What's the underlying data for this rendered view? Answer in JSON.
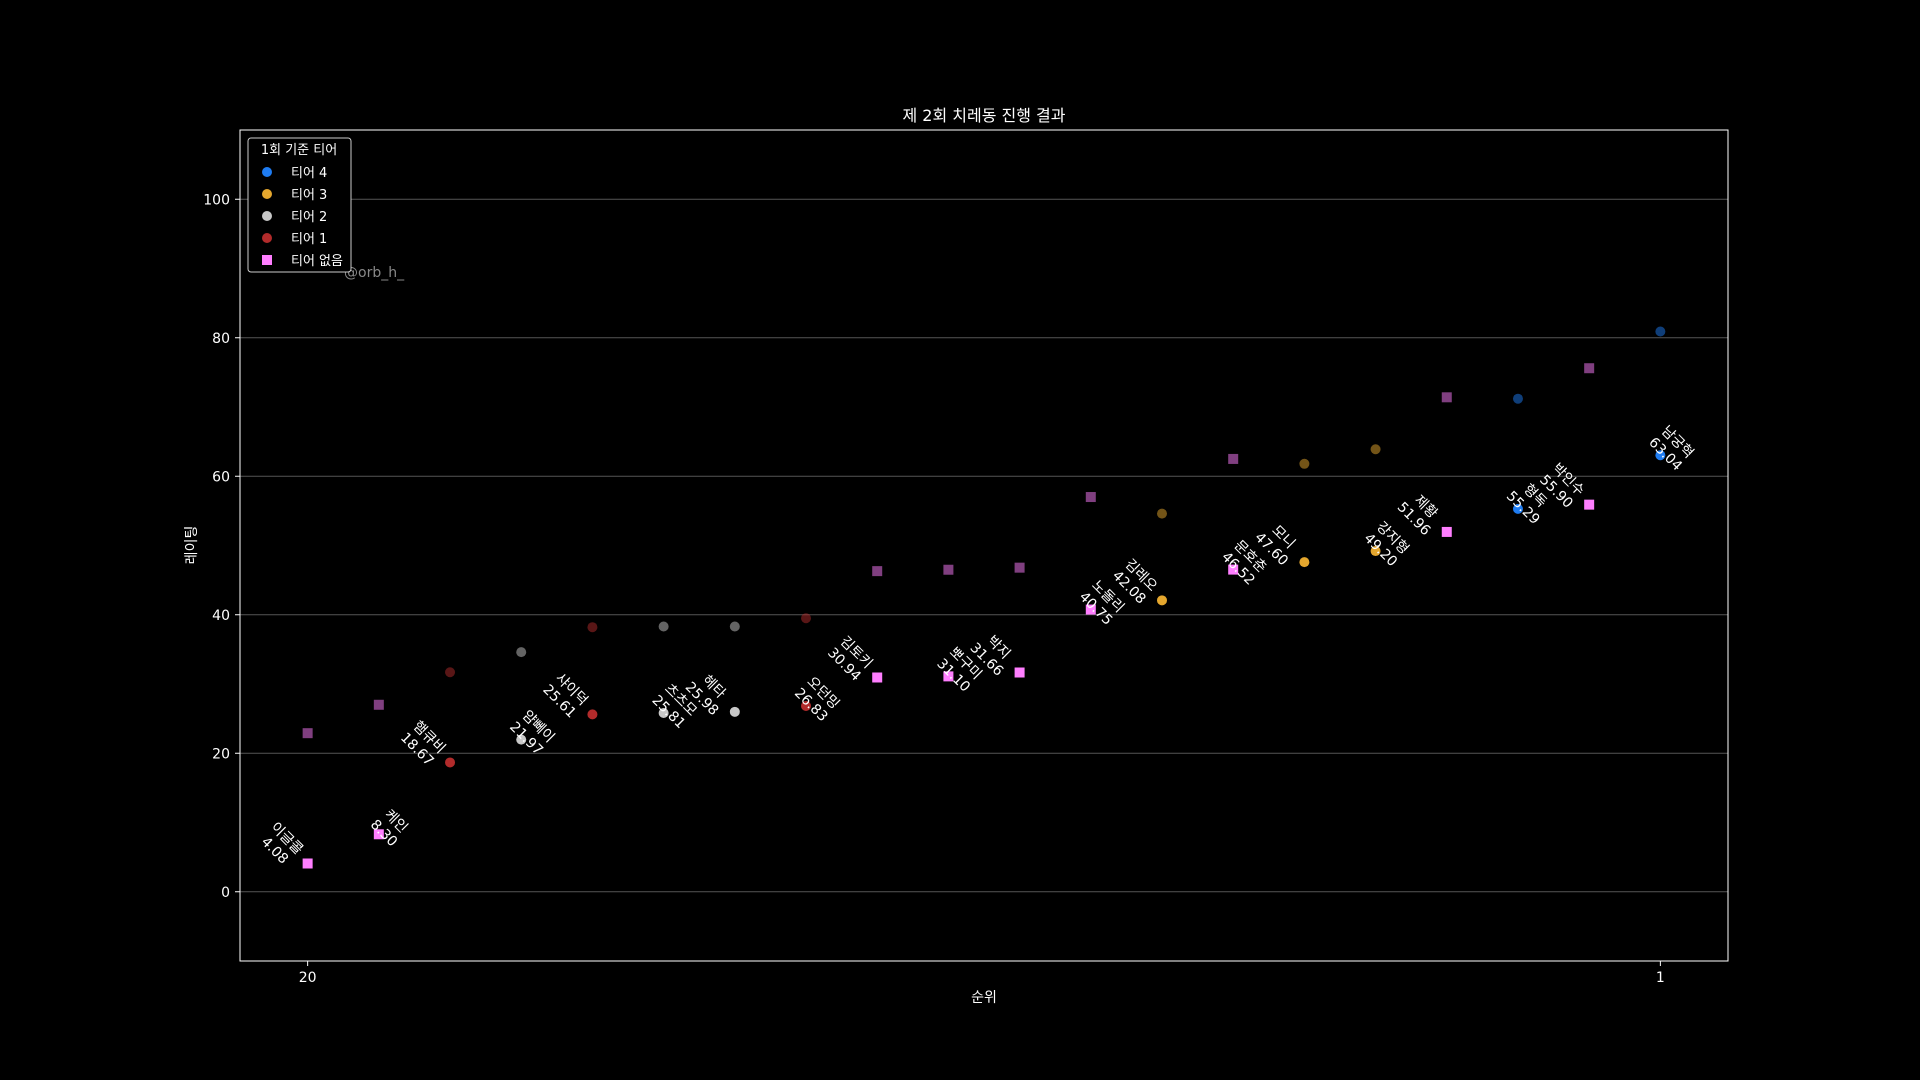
{
  "chart_data": {
    "type": "scatter",
    "title": "제 2회 치레동 진행 결과",
    "xlabel": "순위",
    "ylabel": "레이팅",
    "xlim": [
      20.95,
      0.05
    ],
    "ylim": [
      -10,
      110
    ],
    "xticks": [
      20,
      1
    ],
    "yticks": [
      0,
      20,
      40,
      60,
      80,
      100
    ],
    "grid": "horizontal",
    "legend": {
      "title": "1회 기준 티어",
      "position": "top-left",
      "entries": [
        {
          "label": "티어 4",
          "tier": "t4",
          "marker": "circle"
        },
        {
          "label": "티어 3",
          "tier": "t3",
          "marker": "circle"
        },
        {
          "label": "티어 2",
          "tier": "t2",
          "marker": "circle"
        },
        {
          "label": "티어 1",
          "tier": "t1",
          "marker": "circle"
        },
        {
          "label": "티어 없음",
          "tier": "t0",
          "marker": "square"
        }
      ]
    },
    "colors": {
      "t4": "#1e7cf2",
      "t3": "#e5a72e",
      "t2": "#c8c8c8",
      "t1": "#b22b2b",
      "t0": "#ff7eff"
    },
    "watermark": "@orb_h_",
    "points": [
      {
        "rank": 20,
        "name": "이글콜",
        "value": "4.08",
        "y": 4.08,
        "prev": 22.9,
        "tier": "t0"
      },
      {
        "rank": 19,
        "name": "케인",
        "value": "8.30",
        "y": 8.3,
        "prev": 27.0,
        "tier": "t0"
      },
      {
        "rank": 18,
        "name": "햄큐비",
        "value": "18.67",
        "y": 18.67,
        "prev": 31.7,
        "tier": "t1"
      },
      {
        "rank": 17,
        "name": "얌뻬이",
        "value": "21.97",
        "y": 21.97,
        "prev": 34.6,
        "tier": "t2"
      },
      {
        "rank": 16,
        "name": "샤이덕",
        "value": "25.61",
        "y": 25.61,
        "prev": 38.2,
        "tier": "t1"
      },
      {
        "rank": 15,
        "name": "츠츠모",
        "value": "25.81",
        "y": 25.81,
        "prev": 38.3,
        "tier": "t2"
      },
      {
        "rank": 14,
        "name": "헤타",
        "value": "25.98",
        "y": 25.98,
        "prev": 38.3,
        "tier": "t2"
      },
      {
        "rank": 13,
        "name": "오던밍",
        "value": "26.83",
        "y": 26.83,
        "prev": 39.5,
        "tier": "t1"
      },
      {
        "rank": 12,
        "name": "김토키",
        "value": "30.94",
        "y": 30.94,
        "prev": 46.3,
        "tier": "t0"
      },
      {
        "rank": 11,
        "name": "뽀구미",
        "value": "31.10",
        "y": 31.1,
        "prev": 46.5,
        "tier": "t0"
      },
      {
        "rank": 10,
        "name": "박지",
        "value": "31.66",
        "y": 31.66,
        "prev": 46.8,
        "tier": "t0"
      },
      {
        "rank": 9,
        "name": "노돌리",
        "value": "40.75",
        "y": 40.75,
        "prev": 57.0,
        "tier": "t0"
      },
      {
        "rank": 8,
        "name": "김레오",
        "value": "42.08",
        "y": 42.08,
        "prev": 54.6,
        "tier": "t3"
      },
      {
        "rank": 7,
        "name": "문호춘",
        "value": "46.52",
        "y": 46.52,
        "prev": 62.5,
        "tier": "t0"
      },
      {
        "rank": 6,
        "name": "모니",
        "value": "47.60",
        "y": 47.6,
        "prev": 61.8,
        "tier": "t3"
      },
      {
        "rank": 5,
        "name": "강지형",
        "value": "49.20",
        "y": 49.2,
        "prev": 63.9,
        "tier": "t3"
      },
      {
        "rank": 4,
        "name": "제황",
        "value": "51.96",
        "y": 51.96,
        "prev": 71.4,
        "tier": "t0"
      },
      {
        "rank": 3,
        "name": "형독",
        "value": "55.29",
        "y": 55.29,
        "prev": 71.2,
        "tier": "t4"
      },
      {
        "rank": 2,
        "name": "박인수",
        "value": "55.90",
        "y": 55.9,
        "prev": 75.6,
        "tier": "t0"
      },
      {
        "rank": 1,
        "name": "남궁혁",
        "value": "63.04",
        "y": 63.04,
        "prev": 80.9,
        "tier": "t4"
      }
    ]
  }
}
